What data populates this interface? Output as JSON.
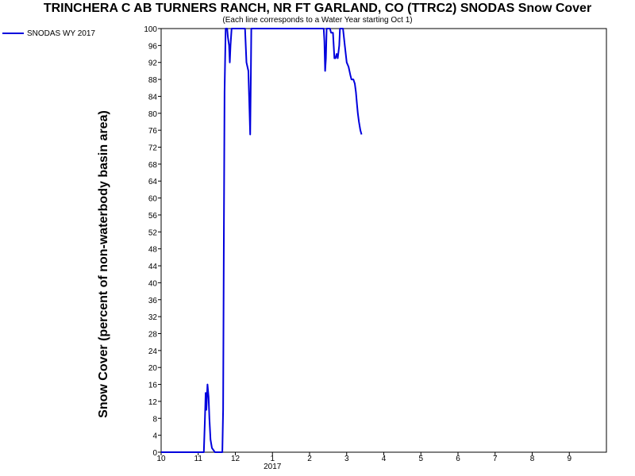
{
  "chart_data": {
    "type": "line",
    "title": "TRINCHERA C AB TURNERS RANCH, NR FT GARLAND, CO (TTRC2) SNODAS Snow Cover",
    "subtitle": "(Each line corresponds to a Water Year starting Oct 1)",
    "ylabel": "Snow Cover (percent of non-waterbody basin area)",
    "xlabel": "",
    "ylim": [
      0,
      100
    ],
    "xlim": [
      0,
      12
    ],
    "x_tick_values": [
      0,
      1,
      2,
      3,
      4,
      5,
      6,
      7,
      8,
      9,
      10,
      11
    ],
    "x_tick_labels": [
      "10",
      "11",
      "12",
      "1",
      "2",
      "3",
      "4",
      "5",
      "6",
      "7",
      "8",
      "9"
    ],
    "x_year_label": "2017",
    "y_tick_values": [
      0,
      4,
      8,
      12,
      16,
      20,
      24,
      28,
      32,
      36,
      40,
      44,
      48,
      52,
      56,
      60,
      64,
      68,
      72,
      76,
      80,
      84,
      88,
      92,
      96,
      100
    ],
    "grid": false,
    "legend_position": "top-left",
    "series": [
      {
        "name": "SNODAS WY 2017",
        "color": "#0000dd",
        "points": [
          [
            0,
            0
          ],
          [
            1.15,
            0
          ],
          [
            1.18,
            8
          ],
          [
            1.2,
            14
          ],
          [
            1.22,
            10
          ],
          [
            1.25,
            16
          ],
          [
            1.28,
            13
          ],
          [
            1.3,
            8
          ],
          [
            1.33,
            3
          ],
          [
            1.37,
            1
          ],
          [
            1.45,
            0
          ],
          [
            1.65,
            0
          ],
          [
            1.67,
            10
          ],
          [
            1.69,
            50
          ],
          [
            1.71,
            85
          ],
          [
            1.74,
            100
          ],
          [
            1.78,
            100
          ],
          [
            1.8,
            98
          ],
          [
            1.83,
            96
          ],
          [
            1.85,
            92
          ],
          [
            1.87,
            96
          ],
          [
            1.9,
            100
          ],
          [
            1.96,
            100
          ],
          [
            2.2,
            100
          ],
          [
            2.26,
            100
          ],
          [
            2.28,
            96
          ],
          [
            2.3,
            92
          ],
          [
            2.35,
            90
          ],
          [
            2.38,
            81
          ],
          [
            2.4,
            75
          ],
          [
            2.42,
            90
          ],
          [
            2.43,
            100
          ],
          [
            4.38,
            100
          ],
          [
            4.4,
            97
          ],
          [
            4.42,
            90
          ],
          [
            4.44,
            93
          ],
          [
            4.46,
            100
          ],
          [
            4.55,
            100
          ],
          [
            4.58,
            99
          ],
          [
            4.6,
            99
          ],
          [
            4.63,
            99
          ],
          [
            4.65,
            96
          ],
          [
            4.67,
            93
          ],
          [
            4.7,
            93
          ],
          [
            4.73,
            94
          ],
          [
            4.76,
            93
          ],
          [
            4.8,
            96
          ],
          [
            4.82,
            100
          ],
          [
            4.9,
            100
          ],
          [
            4.95,
            96
          ],
          [
            5.0,
            92
          ],
          [
            5.05,
            91
          ],
          [
            5.1,
            89
          ],
          [
            5.13,
            88
          ],
          [
            5.18,
            88
          ],
          [
            5.22,
            87
          ],
          [
            5.25,
            85
          ],
          [
            5.28,
            82
          ],
          [
            5.3,
            80
          ],
          [
            5.33,
            78
          ],
          [
            5.37,
            76
          ],
          [
            5.4,
            75
          ]
        ]
      }
    ]
  }
}
